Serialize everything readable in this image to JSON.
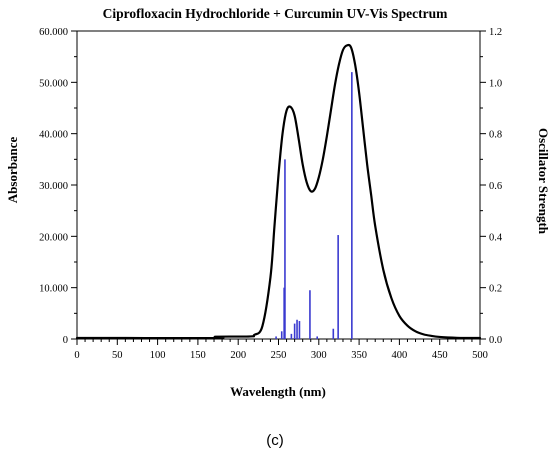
{
  "chart_data": {
    "type": "line",
    "title": "Ciprofloxacin Hydrochloride + Curcumin UV-Vis Spectrum",
    "xlabel": "Wavelength (nm)",
    "ylabel_left": "Absorbance",
    "ylabel_right": "Oscillator Strength",
    "xlim": [
      0,
      500
    ],
    "ylim_left": [
      0,
      60000
    ],
    "ylim_right": [
      0,
      1.2
    ],
    "x_ticks": [
      "0",
      "50",
      "100",
      "150",
      "200",
      "250",
      "300",
      "350",
      "400",
      "450",
      "500"
    ],
    "y_left_ticks": [
      "0",
      "10.000",
      "20.000",
      "30.000",
      "40.000",
      "50.000",
      "60.000"
    ],
    "y_right_ticks": [
      "0.0",
      "0.2",
      "0.4",
      "0.6",
      "0.8",
      "1.0",
      "1.2"
    ],
    "grid": false,
    "panel_label": "(c)",
    "series": [
      {
        "kind": "spectrum",
        "axis": "left",
        "color": "#000000",
        "x": [
          0,
          170,
          172,
          215,
          220,
          230,
          240,
          245,
          250,
          255,
          260,
          265,
          270,
          275,
          280,
          285,
          290,
          295,
          300,
          305,
          310,
          315,
          320,
          325,
          330,
          335,
          340,
          345,
          350,
          355,
          360,
          365,
          370,
          380,
          390,
          400,
          410,
          420,
          430,
          440,
          450,
          460,
          480,
          500
        ],
        "y": [
          200,
          200,
          450,
          500,
          800,
          2500,
          12000,
          22000,
          32000,
          40000,
          44500,
          45200,
          43500,
          39000,
          34000,
          30500,
          28800,
          29200,
          31500,
          35000,
          39500,
          44500,
          49500,
          53500,
          56300,
          57200,
          56800,
          53500,
          48000,
          41000,
          34000,
          28000,
          22000,
          13500,
          8000,
          4500,
          2600,
          1500,
          900,
          600,
          400,
          300,
          200,
          200
        ]
      },
      {
        "kind": "sticks",
        "axis": "right",
        "color": "#3a3ad0",
        "x": [
          247,
          254,
          257,
          258,
          266,
          270,
          273,
          276,
          289,
          298,
          318,
          324,
          341
        ],
        "y": [
          0.01,
          0.03,
          0.2,
          0.7,
          0.02,
          0.06,
          0.075,
          0.07,
          0.19,
          0.01,
          0.04,
          0.405,
          1.04
        ]
      }
    ]
  }
}
